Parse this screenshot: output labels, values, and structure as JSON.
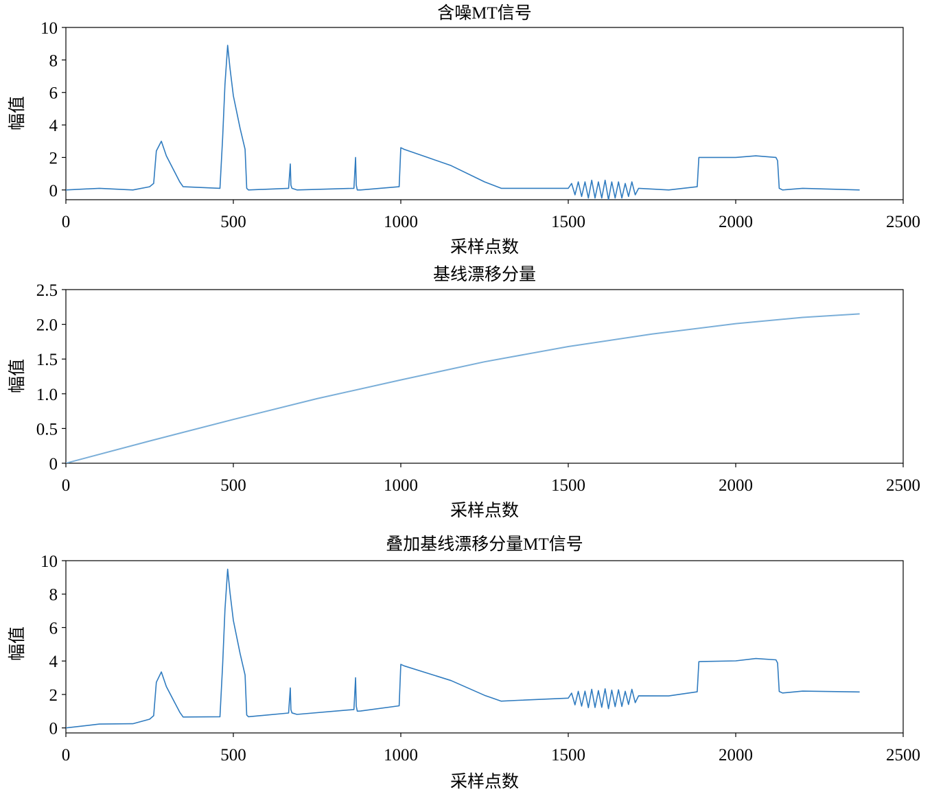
{
  "chart_data": [
    {
      "type": "line",
      "title": "含噪MT信号",
      "xlabel": "采样点数",
      "ylabel": "幅值",
      "xlim": [
        0,
        2500
      ],
      "ylim": [
        -0.6,
        10
      ],
      "xticks": [
        "0",
        "500",
        "1000",
        "1500",
        "2000",
        "2500"
      ],
      "yticks": [
        "0",
        "2",
        "4",
        "6",
        "8",
        "10"
      ],
      "line_color": "#2f7bbf",
      "grid": false,
      "series": [
        {
          "x": [
            0,
            100,
            200,
            250,
            262,
            270,
            285,
            300,
            340,
            350,
            460,
            468,
            475,
            483,
            490,
            500,
            520,
            535,
            540,
            545,
            665,
            670,
            672,
            675,
            690,
            860,
            865,
            867,
            870,
            880,
            995,
            1000,
            1010,
            1080,
            1150,
            1250,
            1300,
            1350,
            1500,
            1510,
            1520,
            1530,
            1540,
            1550,
            1560,
            1570,
            1580,
            1590,
            1600,
            1610,
            1620,
            1630,
            1640,
            1650,
            1660,
            1670,
            1680,
            1690,
            1700,
            1710,
            1800,
            1885,
            1890,
            1900,
            2000,
            2060,
            2120,
            2125,
            2130,
            2140,
            2200,
            2370
          ],
          "y": [
            0,
            0.1,
            0,
            0.2,
            0.4,
            2.4,
            3.0,
            2.1,
            0.5,
            0.2,
            0.1,
            3.2,
            6.5,
            8.9,
            7.5,
            5.8,
            3.8,
            2.5,
            0.1,
            0,
            0.1,
            1.6,
            0.3,
            0.1,
            0,
            0.1,
            2.0,
            0.3,
            0,
            0,
            0.2,
            2.6,
            2.5,
            2.0,
            1.5,
            0.5,
            0.1,
            0.1,
            0.1,
            0.4,
            -0.3,
            0.5,
            -0.4,
            0.5,
            -0.5,
            0.6,
            -0.5,
            0.5,
            -0.5,
            0.6,
            -0.6,
            0.5,
            -0.5,
            0.5,
            -0.5,
            0.4,
            -0.4,
            0.5,
            -0.3,
            0.1,
            0,
            0.2,
            2.0,
            2.0,
            2.0,
            2.1,
            2.0,
            1.8,
            0.1,
            0,
            0.1,
            0
          ],
          "stroke": "#2f7bbf"
        }
      ]
    },
    {
      "type": "line",
      "title": "基线漂移分量",
      "xlabel": "采样点数",
      "ylabel": "幅值",
      "xlim": [
        0,
        2500
      ],
      "ylim": [
        0,
        2.5
      ],
      "xticks": [
        "0",
        "500",
        "1000",
        "1500",
        "2000",
        "2500"
      ],
      "yticks": [
        "0",
        "0.5",
        "1.0",
        "1.5",
        "2.0",
        "2.5"
      ],
      "line_color": "#7aaed8",
      "grid": false,
      "series": [
        {
          "x": [
            0,
            250,
            500,
            750,
            1000,
            1250,
            1500,
            1750,
            2000,
            2200,
            2370
          ],
          "y": [
            0,
            0.32,
            0.63,
            0.93,
            1.2,
            1.46,
            1.68,
            1.86,
            2.01,
            2.1,
            2.15
          ],
          "stroke": "#7aaed8"
        }
      ]
    },
    {
      "type": "line",
      "title": "叠加基线漂移分量MT信号",
      "xlabel": "采样点数",
      "ylabel": "幅值",
      "xlim": [
        0,
        2500
      ],
      "ylim": [
        -0.3,
        10
      ],
      "xticks": [
        "0",
        "500",
        "1000",
        "1500",
        "2000",
        "2500"
      ],
      "yticks": [
        "0",
        "2",
        "4",
        "6",
        "8",
        "10"
      ],
      "line_color": "#2f7bbf",
      "grid": false,
      "series": [
        {
          "x": [
            0,
            100,
            200,
            250,
            262,
            270,
            285,
            300,
            340,
            350,
            460,
            468,
            475,
            483,
            490,
            500,
            520,
            535,
            540,
            545,
            665,
            670,
            672,
            675,
            690,
            860,
            865,
            867,
            870,
            880,
            995,
            1000,
            1010,
            1080,
            1150,
            1250,
            1300,
            1350,
            1500,
            1510,
            1520,
            1530,
            1540,
            1550,
            1560,
            1570,
            1580,
            1590,
            1600,
            1610,
            1620,
            1630,
            1640,
            1650,
            1660,
            1670,
            1680,
            1690,
            1700,
            1710,
            1800,
            1885,
            1890,
            1900,
            2000,
            2060,
            2120,
            2125,
            2130,
            2140,
            2200,
            2370
          ],
          "y": [
            0,
            0.23,
            0.25,
            0.52,
            0.73,
            2.73,
            3.35,
            2.47,
            0.94,
            0.65,
            0.67,
            3.77,
            7.08,
            9.49,
            8.1,
            6.43,
            4.45,
            3.16,
            0.77,
            0.67,
            0.89,
            2.39,
            1.09,
            0.9,
            0.81,
            1.1,
            3.0,
            1.3,
            1.0,
            1.01,
            1.32,
            3.8,
            3.71,
            3.27,
            2.83,
            1.95,
            1.6,
            1.65,
            1.78,
            2.08,
            1.38,
            2.19,
            1.3,
            2.2,
            1.21,
            2.31,
            1.22,
            2.23,
            1.23,
            2.34,
            1.15,
            2.26,
            1.27,
            2.28,
            1.28,
            2.19,
            1.4,
            2.31,
            1.51,
            1.92,
            1.91,
            2.16,
            3.96,
            3.97,
            4.01,
            4.15,
            4.07,
            3.88,
            2.18,
            2.09,
            2.2,
            2.15
          ],
          "stroke": "#2f7bbf"
        }
      ]
    }
  ]
}
